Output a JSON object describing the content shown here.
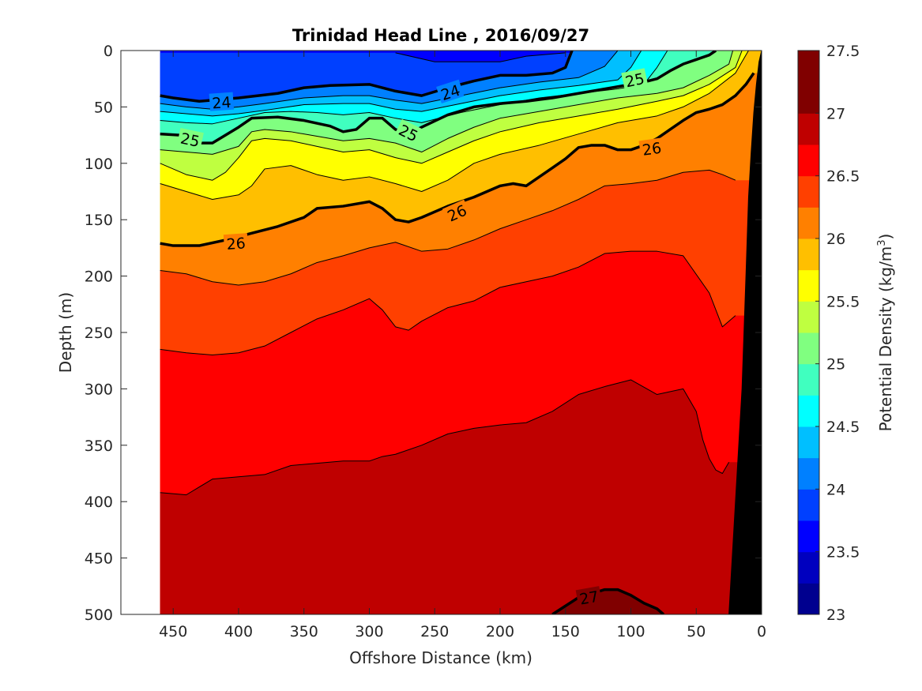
{
  "chart_data": {
    "type": "filled-contour",
    "title": "Trinidad Head Line , 2016/09/27",
    "xlabel": "Offshore Distance (km)",
    "ylabel": "Depth (m)",
    "colorbar_label": "Potential Density (kg/m",
    "colorbar_label_sup": "3",
    "colorbar_label_end": ")",
    "xlim": [
      490,
      0
    ],
    "ylim": [
      0,
      500
    ],
    "x_reversed": true,
    "y_reversed": true,
    "x_ticks": [
      450,
      400,
      350,
      300,
      250,
      200,
      150,
      100,
      50,
      0
    ],
    "y_ticks": [
      0,
      50,
      100,
      150,
      200,
      250,
      300,
      350,
      400,
      450,
      500
    ],
    "colorbar_range": [
      23,
      27.5
    ],
    "colorbar_ticks": [
      "23",
      "23.5",
      "24",
      "24.5",
      "25",
      "25.5",
      "26",
      "26.5",
      "27",
      "27.5"
    ],
    "level_step": 0.25,
    "section_x_range": [
      460,
      0
    ],
    "level_colors": [
      "#00008F",
      "#0000BF",
      "#0000FF",
      "#0040FF",
      "#0080FF",
      "#00BFFF",
      "#00FFFF",
      "#40FFBF",
      "#80FF80",
      "#BFFF40",
      "#FFFF00",
      "#FFBF00",
      "#FF8000",
      "#FF4000",
      "#FF0000",
      "#BF0000",
      "#800000"
    ],
    "levels": [
      {
        "sigma": 23.75,
        "x": [
          280,
          250,
          200,
          180,
          150
        ],
        "depth": [
          2,
          10,
          10,
          5,
          2
        ]
      },
      {
        "sigma": 24.0,
        "x": [
          460,
          450,
          430,
          400,
          370,
          350,
          330,
          300,
          280,
          260,
          240,
          220,
          200,
          180,
          160,
          150,
          145
        ],
        "depth": [
          40,
          42,
          45,
          42,
          38,
          33,
          31,
          30,
          36,
          40,
          33,
          27,
          22,
          22,
          20,
          15,
          0
        ]
      },
      {
        "sigma": 24.25,
        "x": [
          460,
          440,
          420,
          400,
          380,
          350,
          320,
          300,
          280,
          260,
          230,
          200,
          170,
          140,
          120,
          110
        ],
        "depth": [
          47,
          50,
          52,
          50,
          47,
          42,
          40,
          40,
          44,
          47,
          40,
          33,
          28,
          24,
          14,
          0
        ]
      },
      {
        "sigma": 24.5,
        "x": [
          460,
          440,
          420,
          400,
          380,
          350,
          320,
          300,
          280,
          260,
          230,
          200,
          170,
          140,
          110,
          100,
          92
        ],
        "depth": [
          54,
          56,
          58,
          56,
          53,
          48,
          47,
          47,
          52,
          54,
          47,
          40,
          35,
          31,
          26,
          15,
          0
        ]
      },
      {
        "sigma": 24.75,
        "x": [
          460,
          440,
          420,
          400,
          380,
          360,
          340,
          320,
          300,
          280,
          260,
          230,
          200,
          170,
          140,
          110,
          90,
          80,
          72
        ],
        "depth": [
          62,
          64,
          65,
          60,
          55,
          54,
          55,
          57,
          55,
          60,
          64,
          55,
          48,
          42,
          38,
          34,
          30,
          15,
          0
        ]
      },
      {
        "sigma": 25.0,
        "x": [
          460,
          445,
          430,
          420,
          410,
          400,
          390,
          370,
          350,
          330,
          320,
          310,
          300,
          290,
          280,
          270,
          260,
          240,
          220,
          200,
          180,
          160,
          140,
          120,
          100,
          90,
          80,
          70,
          60,
          50,
          40,
          35
        ],
        "depth": [
          74,
          75,
          82,
          82,
          75,
          68,
          60,
          59,
          62,
          67,
          72,
          70,
          60,
          60,
          70,
          74,
          68,
          57,
          50,
          47,
          45,
          42,
          38,
          34,
          30,
          28,
          25,
          18,
          12,
          8,
          4,
          0
        ]
      },
      {
        "sigma": 25.25,
        "x": [
          460,
          440,
          420,
          400,
          390,
          380,
          360,
          340,
          320,
          300,
          280,
          260,
          240,
          220,
          200,
          170,
          140,
          110,
          80,
          60,
          40,
          25,
          22
        ],
        "depth": [
          88,
          90,
          92,
          85,
          72,
          70,
          72,
          76,
          80,
          78,
          82,
          90,
          78,
          68,
          60,
          54,
          48,
          42,
          38,
          33,
          22,
          12,
          0
        ]
      },
      {
        "sigma": 25.5,
        "x": [
          460,
          440,
          420,
          410,
          400,
          390,
          380,
          360,
          340,
          320,
          300,
          280,
          260,
          240,
          220,
          200,
          170,
          140,
          110,
          80,
          60,
          40,
          20,
          15
        ],
        "depth": [
          100,
          110,
          115,
          108,
          95,
          80,
          78,
          80,
          85,
          90,
          88,
          95,
          100,
          90,
          80,
          72,
          64,
          58,
          52,
          45,
          40,
          30,
          15,
          0
        ]
      },
      {
        "sigma": 25.75,
        "x": [
          460,
          440,
          420,
          400,
          390,
          380,
          360,
          340,
          320,
          300,
          280,
          260,
          240,
          220,
          200,
          170,
          140,
          110,
          80,
          60,
          40,
          20,
          10
        ],
        "depth": [
          118,
          125,
          132,
          128,
          120,
          105,
          102,
          110,
          115,
          112,
          118,
          125,
          115,
          100,
          92,
          84,
          74,
          64,
          58,
          50,
          38,
          20,
          0
        ]
      },
      {
        "sigma": 26.0,
        "x": [
          460,
          450,
          430,
          410,
          390,
          370,
          350,
          340,
          320,
          300,
          290,
          280,
          270,
          260,
          240,
          220,
          200,
          190,
          180,
          170,
          160,
          150,
          140,
          130,
          120,
          110,
          100,
          90,
          80,
          70,
          60,
          50,
          40,
          30,
          20,
          12,
          6
        ],
        "depth": [
          171,
          173,
          173,
          168,
          162,
          156,
          148,
          140,
          138,
          134,
          140,
          150,
          152,
          148,
          138,
          130,
          120,
          118,
          120,
          112,
          104,
          96,
          86,
          84,
          84,
          88,
          88,
          84,
          78,
          70,
          62,
          55,
          52,
          48,
          40,
          30,
          20
        ]
      },
      {
        "sigma": 26.25,
        "x": [
          460,
          440,
          420,
          400,
          380,
          360,
          340,
          320,
          300,
          280,
          260,
          240,
          220,
          200,
          180,
          160,
          140,
          120,
          100,
          80,
          60,
          40,
          30,
          20
        ],
        "depth": [
          195,
          198,
          205,
          208,
          205,
          198,
          188,
          182,
          175,
          170,
          178,
          176,
          168,
          158,
          150,
          142,
          132,
          120,
          118,
          115,
          108,
          106,
          110,
          115
        ]
      },
      {
        "sigma": 26.5,
        "x": [
          460,
          440,
          420,
          400,
          380,
          360,
          340,
          320,
          300,
          290,
          280,
          270,
          260,
          240,
          220,
          200,
          180,
          160,
          140,
          120,
          100,
          80,
          60,
          40,
          30,
          20
        ],
        "depth": [
          265,
          268,
          270,
          268,
          262,
          250,
          238,
          230,
          220,
          230,
          245,
          248,
          240,
          228,
          222,
          210,
          205,
          200,
          192,
          180,
          178,
          178,
          182,
          215,
          245,
          235
        ]
      },
      {
        "sigma": 26.75,
        "x": [
          460,
          440,
          420,
          400,
          380,
          360,
          340,
          320,
          300,
          290,
          280,
          260,
          240,
          220,
          200,
          180,
          160,
          140,
          120,
          100,
          80,
          60,
          50,
          45,
          40,
          35,
          30,
          25
        ],
        "depth": [
          392,
          394,
          380,
          378,
          376,
          368,
          366,
          364,
          364,
          360,
          358,
          350,
          340,
          335,
          332,
          330,
          320,
          305,
          298,
          292,
          305,
          300,
          320,
          345,
          362,
          372,
          375,
          365
        ]
      },
      {
        "sigma": 27.0,
        "x": [
          160,
          140,
          120,
          110,
          100,
          90,
          80,
          75
        ],
        "depth": [
          500,
          485,
          478,
          478,
          483,
          490,
          495,
          500
        ]
      }
    ],
    "bold_contours": [
      24,
      25,
      26,
      27
    ],
    "bottom_topography_x": [
      25,
      20,
      15,
      12,
      10,
      8,
      6,
      4,
      2,
      0
    ],
    "bottom_topography_depth": [
      500,
      400,
      300,
      200,
      130,
      90,
      55,
      30,
      10,
      0
    ],
    "contour_labels": [
      {
        "text": "24",
        "x": 413,
        "depth": 46,
        "angle": -4
      },
      {
        "text": "24",
        "x": 238,
        "depth": 37,
        "angle": -18
      },
      {
        "text": "25",
        "x": 437,
        "depth": 79,
        "angle": 12
      },
      {
        "text": "25",
        "x": 270,
        "depth": 73,
        "angle": 26
      },
      {
        "text": "25",
        "x": 97,
        "depth": 26,
        "angle": -12
      },
      {
        "text": "26",
        "x": 402,
        "depth": 171,
        "angle": -4
      },
      {
        "text": "26",
        "x": 233,
        "depth": 144,
        "angle": -24
      },
      {
        "text": "26",
        "x": 84,
        "depth": 87,
        "angle": -8
      },
      {
        "text": "27",
        "x": 132,
        "depth": 485,
        "angle": -10
      }
    ]
  }
}
